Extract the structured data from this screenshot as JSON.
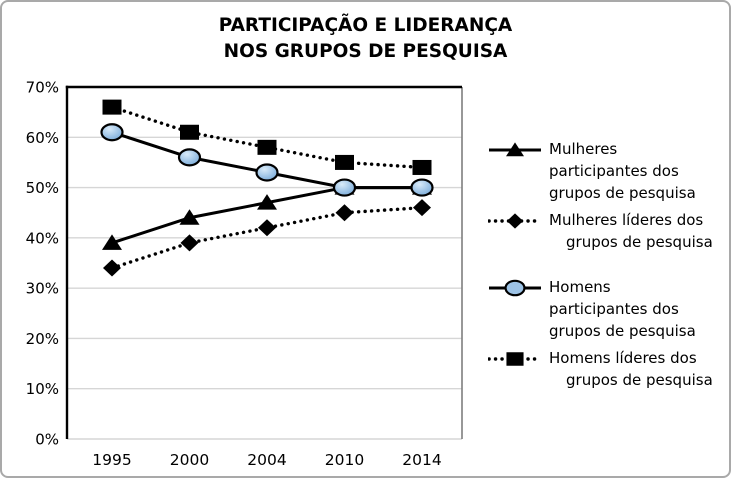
{
  "title": {
    "line1": "PARTICIPAÇÃO E LIDERANÇA",
    "line2": "NOS GRUPOS DE PESQUISA"
  },
  "chart_data": {
    "type": "line",
    "title": "PARTICIPAÇÃO E LIDERANÇA NOS GRUPOS DE PESQUISA",
    "categories": [
      "1995",
      "2000",
      "2004",
      "2010",
      "2014"
    ],
    "series": [
      {
        "name": "Mulheres participantes dos grupos de pesquisa",
        "slug": "mulheres-participantes",
        "values": [
          39,
          44,
          47,
          50,
          50
        ],
        "line": "solid",
        "marker": "triangle"
      },
      {
        "name": "Mulheres líderes dos grupos de pesquisa",
        "slug": "mulheres-lideres",
        "values": [
          34,
          39,
          42,
          45,
          46
        ],
        "line": "dotted",
        "marker": "diamond"
      },
      {
        "name": "Homens participantes dos grupos de pesquisa",
        "slug": "homens-participantes",
        "values": [
          61,
          56,
          53,
          50,
          50
        ],
        "line": "solid",
        "marker": "circle"
      },
      {
        "name": "Homens líderes dos grupos de pesquisa",
        "slug": "homens-lideres",
        "values": [
          66,
          61,
          58,
          55,
          54
        ],
        "line": "dotted",
        "marker": "square"
      }
    ],
    "xlabel": "",
    "ylabel": "",
    "ylim": [
      0,
      70
    ],
    "ytick_step": 10,
    "ytick_labels": [
      "0%",
      "10%",
      "20%",
      "30%",
      "40%",
      "50%",
      "60%",
      "70%"
    ],
    "grid": true,
    "legend_position": "right"
  },
  "legend": {
    "entries": [
      {
        "series": "mulheres-participantes",
        "marker": "triangle",
        "line": "solid",
        "label": "Mulheres participantes dos grupos de pesquisa",
        "lines": [
          "Mulheres",
          "participantes dos",
          "grupos de pesquisa"
        ]
      },
      {
        "series": "mulheres-lideres",
        "marker": "diamond",
        "line": "dotted",
        "label": "Mulheres líderes dos grupos de pesquisa",
        "lines": [
          "Mulheres líderes dos",
          "grupos de pesquisa"
        ]
      },
      {
        "series": "homens-participantes",
        "marker": "circle",
        "line": "solid",
        "label": "Homens participantes dos grupos de pesquisa",
        "lines": [
          "Homens",
          "participantes dos",
          "grupos de pesquisa"
        ]
      },
      {
        "series": "homens-lideres",
        "marker": "square",
        "line": "dotted",
        "label": "Homens líderes dos grupos de pesquisa",
        "lines": [
          "Homens líderes dos",
          "grupos de pesquisa"
        ]
      }
    ]
  },
  "colors": {
    "background": "#ffffff",
    "frame_border": "#a9a9a9",
    "text": "#000000",
    "series_line": "#000000",
    "grid_line": "#d6d6d6",
    "axis_line": "#000000",
    "plot_right_border": "#7f7f7f",
    "circle_marker_fill": "#9dc3e6",
    "circle_marker_highlight": "#d9ebf9"
  }
}
